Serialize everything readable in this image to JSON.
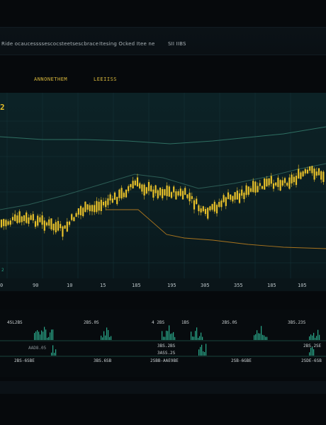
{
  "header": {
    "left_text": "Ride ocaucessssescocsteetsescbrace",
    "mid_text": "Itesing Ocked Itee ne",
    "right_text": "SII IIBS"
  },
  "tabs": [
    "ANNONETHEM",
    "LEEIISS"
  ],
  "chart": {
    "corner_label": "2",
    "bottom_left_label": "2",
    "x_ticks": [
      "0",
      "90",
      "10",
      "15",
      "185",
      "195",
      "305",
      "355",
      "185",
      "105"
    ]
  },
  "lower_panel": {
    "row1_labels": [
      "4SL2BS",
      "2BS.0S",
      "4 2BS",
      "1BS",
      "2BS.0S",
      "3BS.23S"
    ],
    "row2_labels": [
      "AAD8.05",
      "3BS.2BS",
      "3ASS.2S",
      "2BS.2SE"
    ],
    "row3_labels": [
      "2BS-6SBE",
      "3BS.6SB",
      "2SBB-AAE9BE",
      "2SB-6GBE",
      "2SDE-6SB"
    ]
  },
  "colors": {
    "candle": "#e8c12a",
    "background": "#06090c",
    "panel": "#0c2226",
    "teal_line": "#2f6f62",
    "orange_line": "#a8741e",
    "volume": "#2aa88a"
  }
}
